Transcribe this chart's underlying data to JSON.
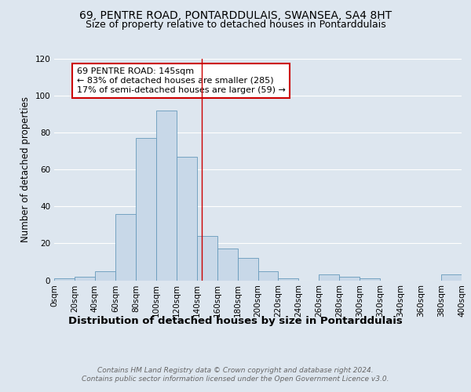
{
  "title1": "69, PENTRE ROAD, PONTARDDULAIS, SWANSEA, SA4 8HT",
  "title2": "Size of property relative to detached houses in Pontarddulais",
  "xlabel": "Distribution of detached houses by size in Pontarddulais",
  "ylabel": "Number of detached properties",
  "bin_edges": [
    0,
    20,
    40,
    60,
    80,
    100,
    120,
    140,
    160,
    180,
    200,
    220,
    240,
    260,
    280,
    300,
    320,
    340,
    360,
    380,
    400
  ],
  "bar_heights": [
    1,
    2,
    5,
    36,
    77,
    92,
    67,
    24,
    17,
    12,
    5,
    1,
    0,
    3,
    2,
    1,
    0,
    0,
    0,
    3
  ],
  "bar_color": "#c8d8e8",
  "bar_edge_color": "#6699bb",
  "property_size": 145,
  "vline_color": "#cc0000",
  "annotation_text": "69 PENTRE ROAD: 145sqm\n← 83% of detached houses are smaller (285)\n17% of semi-detached houses are larger (59) →",
  "annotation_box_color": "white",
  "annotation_box_edge": "#cc0000",
  "ylim": [
    0,
    120
  ],
  "yticks": [
    0,
    20,
    40,
    60,
    80,
    100,
    120
  ],
  "footer_text": "Contains HM Land Registry data © Crown copyright and database right 2024.\nContains public sector information licensed under the Open Government Licence v3.0.",
  "bg_color": "#dde6ef",
  "plot_bg_color": "#dde6ef",
  "title1_fontsize": 10,
  "title2_fontsize": 9,
  "xlabel_fontsize": 9.5,
  "ylabel_fontsize": 8.5,
  "tick_fontsize": 7.5,
  "annotation_fontsize": 8,
  "footer_fontsize": 6.5
}
